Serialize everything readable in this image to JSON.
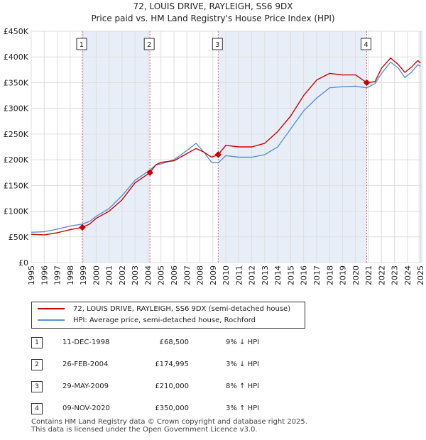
{
  "title_line1": "72, LOUIS DRIVE, RAYLEIGH, SS6 9DX",
  "title_line2": "Price paid vs. HM Land Registry's House Price Index (HPI)",
  "chart_data": {
    "type": "line",
    "title": "Price paid vs. HM Land Registry's House Price Index (HPI)",
    "ylim": [
      0,
      450000
    ],
    "xlim": [
      1995,
      2025.1
    ],
    "y_ticks": [
      {
        "value": 0,
        "label": "£0"
      },
      {
        "value": 50000,
        "label": "£50K"
      },
      {
        "value": 100000,
        "label": "£100K"
      },
      {
        "value": 150000,
        "label": "£150K"
      },
      {
        "value": 200000,
        "label": "£200K"
      },
      {
        "value": 250000,
        "label": "£250K"
      },
      {
        "value": 300000,
        "label": "£300K"
      },
      {
        "value": 350000,
        "label": "£350K"
      },
      {
        "value": 400000,
        "label": "£400K"
      },
      {
        "value": 450000,
        "label": "£450K"
      }
    ],
    "x_ticks": [
      "1995",
      "1996",
      "1997",
      "1998",
      "1999",
      "2000",
      "2001",
      "2002",
      "2003",
      "2004",
      "2005",
      "2006",
      "2007",
      "2008",
      "2009",
      "2010",
      "2011",
      "2012",
      "2013",
      "2014",
      "2015",
      "2016",
      "2017",
      "2018",
      "2019",
      "2020",
      "2021",
      "2022",
      "2023",
      "2024",
      "2025"
    ],
    "series": [
      {
        "name": "72, LOUIS DRIVE, RAYLEIGH, SS6 9DX (semi-detached house)",
        "color": "#cc0000",
        "points": [
          [
            1995,
            55000
          ],
          [
            1996,
            54000
          ],
          [
            1997,
            58000
          ],
          [
            1998,
            64000
          ],
          [
            1998.94,
            68500
          ],
          [
            1999.5,
            75000
          ],
          [
            2000,
            86000
          ],
          [
            2001,
            100000
          ],
          [
            2002,
            122000
          ],
          [
            2003,
            155000
          ],
          [
            2004.15,
            174995
          ],
          [
            2004.6,
            190000
          ],
          [
            2005,
            195000
          ],
          [
            2006,
            198000
          ],
          [
            2007,
            212000
          ],
          [
            2007.7,
            222000
          ],
          [
            2008.3,
            215000
          ],
          [
            2008.9,
            205000
          ],
          [
            2009.41,
            210000
          ],
          [
            2010,
            228000
          ],
          [
            2011,
            225000
          ],
          [
            2012,
            225000
          ],
          [
            2013,
            232000
          ],
          [
            2014,
            255000
          ],
          [
            2015,
            285000
          ],
          [
            2016,
            325000
          ],
          [
            2017,
            355000
          ],
          [
            2018,
            368000
          ],
          [
            2019,
            365000
          ],
          [
            2020,
            365000
          ],
          [
            2020.86,
            350000
          ],
          [
            2021.5,
            352000
          ],
          [
            2022,
            378000
          ],
          [
            2022.7,
            398000
          ],
          [
            2023.3,
            385000
          ],
          [
            2023.8,
            370000
          ],
          [
            2024.3,
            380000
          ],
          [
            2024.8,
            393000
          ],
          [
            2025,
            388000
          ]
        ]
      },
      {
        "name": "HPI: Average price, semi-detached house, Rochford",
        "color": "#5b8fd4",
        "points": [
          [
            1995,
            59000
          ],
          [
            1996,
            60000
          ],
          [
            1997,
            65000
          ],
          [
            1998,
            71000
          ],
          [
            1998.94,
            75000
          ],
          [
            1999.5,
            80000
          ],
          [
            2000,
            90000
          ],
          [
            2001,
            105000
          ],
          [
            2002,
            130000
          ],
          [
            2003,
            160000
          ],
          [
            2004.15,
            180000
          ],
          [
            2004.6,
            190000
          ],
          [
            2005,
            192000
          ],
          [
            2006,
            200000
          ],
          [
            2007,
            218000
          ],
          [
            2007.7,
            232000
          ],
          [
            2008.3,
            215000
          ],
          [
            2008.9,
            195000
          ],
          [
            2009.41,
            194000
          ],
          [
            2010,
            208000
          ],
          [
            2011,
            205000
          ],
          [
            2012,
            205000
          ],
          [
            2013,
            210000
          ],
          [
            2014,
            225000
          ],
          [
            2015,
            260000
          ],
          [
            2016,
            295000
          ],
          [
            2017,
            320000
          ],
          [
            2018,
            340000
          ],
          [
            2019,
            342000
          ],
          [
            2020,
            343000
          ],
          [
            2020.86,
            340000
          ],
          [
            2021.5,
            348000
          ],
          [
            2022,
            368000
          ],
          [
            2022.7,
            390000
          ],
          [
            2023.3,
            378000
          ],
          [
            2023.8,
            360000
          ],
          [
            2024.3,
            370000
          ],
          [
            2024.8,
            385000
          ],
          [
            2025,
            382000
          ]
        ]
      }
    ],
    "sales": [
      {
        "num": "1",
        "x": 1998.94,
        "price": 68500
      },
      {
        "num": "2",
        "x": 2004.15,
        "price": 174995
      },
      {
        "num": "3",
        "x": 2009.41,
        "price": 210000
      },
      {
        "num": "4",
        "x": 2020.86,
        "price": 350000
      }
    ],
    "colors": {
      "shade": "#e8eef8",
      "grid": "#ffffff",
      "vline": "#e06666",
      "marker": "#cc0000"
    }
  },
  "legend": {
    "property": "72, LOUIS DRIVE, RAYLEIGH, SS6 9DX (semi-detached house)",
    "hpi": "HPI: Average price, semi-detached house, Rochford"
  },
  "sales_table": [
    {
      "num": "1",
      "date": "11-DEC-1998",
      "price": "£68,500",
      "hpi": "9% ↓ HPI"
    },
    {
      "num": "2",
      "date": "26-FEB-2004",
      "price": "£174,995",
      "hpi": "3% ↓ HPI"
    },
    {
      "num": "3",
      "date": "29-MAY-2009",
      "price": "£210,000",
      "hpi": "8% ↑ HPI"
    },
    {
      "num": "4",
      "date": "09-NOV-2020",
      "price": "£350,000",
      "hpi": "3% ↑ HPI"
    }
  ],
  "footer": {
    "line1": "Contains HM Land Registry data © Crown copyright and database right 2025.",
    "line2": "This data is licensed under the Open Government Licence v3.0."
  }
}
